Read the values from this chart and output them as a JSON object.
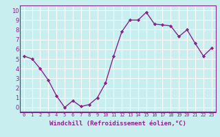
{
  "x": [
    0,
    1,
    2,
    3,
    4,
    5,
    6,
    7,
    8,
    9,
    10,
    11,
    12,
    13,
    14,
    15,
    16,
    17,
    18,
    19,
    20,
    21,
    22,
    23
  ],
  "y": [
    5.3,
    5.0,
    4.0,
    2.8,
    1.2,
    0.0,
    0.7,
    0.1,
    0.3,
    1.0,
    2.5,
    5.3,
    7.8,
    9.0,
    9.0,
    9.8,
    8.6,
    8.5,
    8.4,
    7.3,
    8.0,
    6.6,
    5.3,
    6.1
  ],
  "line_color": "#882288",
  "marker_color": "#882288",
  "bg_color": "#c8eef0",
  "plot_bg_color": "#c8eef0",
  "grid_color": "#ffffff",
  "xlabel": "Windchill (Refroidissement éolien,°C)",
  "xlabel_color": "#882288",
  "separator_color": "#882288",
  "tick_color": "#882288",
  "ylabel_ticks": [
    0,
    1,
    2,
    3,
    4,
    5,
    6,
    7,
    8,
    9,
    10
  ],
  "xlim": [
    -0.5,
    23.5
  ],
  "ylim": [
    -0.5,
    10.5
  ]
}
